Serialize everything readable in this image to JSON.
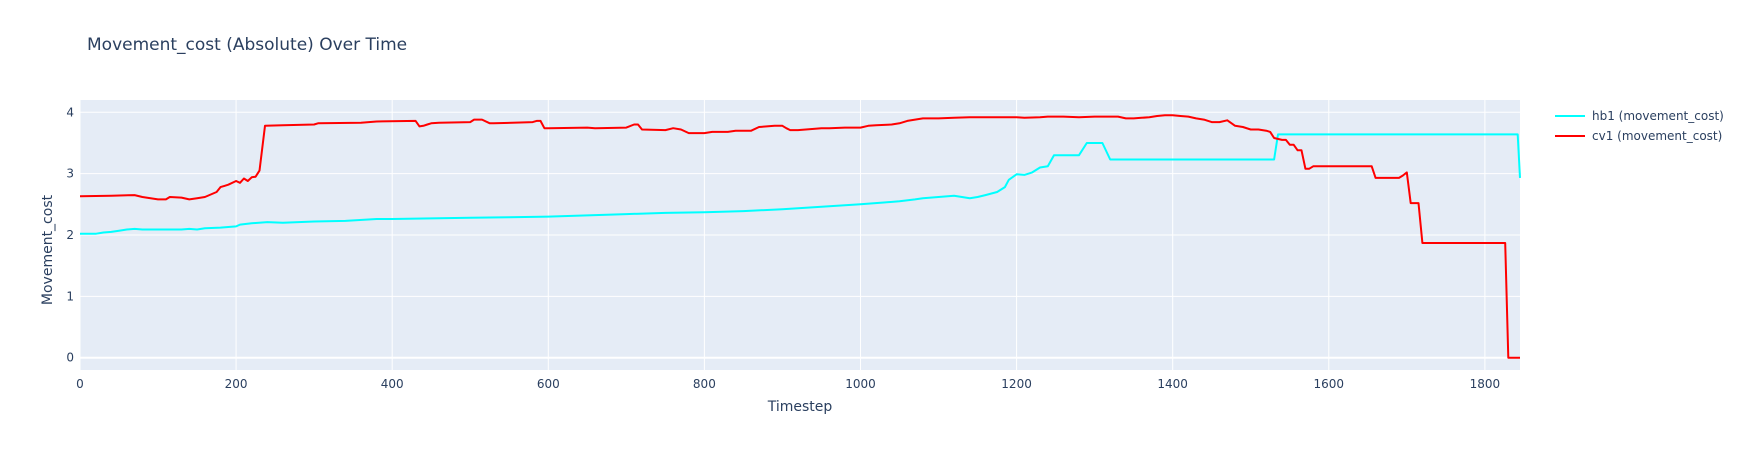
{
  "chart_data": {
    "type": "line",
    "title": "Movement_cost (Absolute) Over Time",
    "xlabel": "Timestep",
    "ylabel": "Movement_cost",
    "xlim": [
      0,
      1845
    ],
    "ylim": [
      -0.2,
      4.2
    ],
    "xticks": [
      0,
      200,
      400,
      600,
      800,
      1000,
      1200,
      1400,
      1600,
      1800
    ],
    "yticks": [
      0,
      1,
      2,
      3,
      4
    ],
    "grid": true,
    "legend_position": "top-right",
    "plot_background": "#e5ecf6",
    "series": [
      {
        "name": "hb1 (movement_cost)",
        "color": "#00ffff",
        "x": [
          0,
          20,
          30,
          40,
          50,
          60,
          70,
          80,
          100,
          120,
          130,
          140,
          150,
          160,
          180,
          200,
          205,
          220,
          240,
          260,
          300,
          340,
          380,
          400,
          450,
          500,
          550,
          600,
          650,
          700,
          750,
          800,
          850,
          900,
          950,
          1000,
          1030,
          1050,
          1070,
          1080,
          1100,
          1120,
          1140,
          1150,
          1160,
          1175,
          1185,
          1190,
          1200,
          1210,
          1220,
          1230,
          1240,
          1248,
          1250,
          1270,
          1280,
          1290,
          1310,
          1320,
          1330,
          1400,
          1500,
          1530,
          1535,
          1540,
          1842,
          1845
        ],
        "y": [
          2.02,
          2.02,
          2.04,
          2.05,
          2.07,
          2.09,
          2.1,
          2.09,
          2.09,
          2.09,
          2.09,
          2.1,
          2.09,
          2.11,
          2.12,
          2.14,
          2.17,
          2.19,
          2.21,
          2.2,
          2.22,
          2.23,
          2.26,
          2.26,
          2.27,
          2.28,
          2.29,
          2.3,
          2.32,
          2.34,
          2.36,
          2.37,
          2.39,
          2.42,
          2.46,
          2.5,
          2.53,
          2.55,
          2.58,
          2.6,
          2.62,
          2.64,
          2.6,
          2.62,
          2.65,
          2.7,
          2.78,
          2.9,
          2.99,
          2.98,
          3.02,
          3.1,
          3.12,
          3.3,
          3.3,
          3.3,
          3.3,
          3.5,
          3.5,
          3.23,
          3.23,
          3.23,
          3.23,
          3.23,
          3.64,
          3.64,
          3.64,
          2.93
        ]
      },
      {
        "name": "cv1 (movement_cost)",
        "color": "#ff0000",
        "x": [
          0,
          40,
          70,
          80,
          100,
          110,
          115,
          130,
          140,
          150,
          160,
          175,
          180,
          185,
          190,
          200,
          205,
          210,
          215,
          220,
          225,
          230,
          237,
          260,
          300,
          305,
          360,
          370,
          380,
          430,
          435,
          440,
          445,
          450,
          460,
          500,
          505,
          515,
          525,
          530,
          580,
          585,
          590,
          595,
          600,
          650,
          660,
          700,
          710,
          715,
          720,
          750,
          760,
          770,
          780,
          800,
          810,
          830,
          840,
          860,
          870,
          880,
          890,
          900,
          905,
          910,
          920,
          950,
          960,
          980,
          1000,
          1010,
          1020,
          1040,
          1050,
          1060,
          1070,
          1080,
          1100,
          1120,
          1140,
          1180,
          1200,
          1210,
          1230,
          1240,
          1260,
          1280,
          1300,
          1330,
          1340,
          1350,
          1360,
          1370,
          1380,
          1390,
          1400,
          1410,
          1420,
          1430,
          1440,
          1450,
          1460,
          1470,
          1480,
          1490,
          1500,
          1510,
          1520,
          1525,
          1530,
          1540,
          1545,
          1550,
          1555,
          1560,
          1565,
          1570,
          1575,
          1580,
          1585,
          1655,
          1660,
          1690,
          1695,
          1700,
          1705,
          1715,
          1720,
          1826,
          1830,
          1845
        ],
        "y": [
          2.63,
          2.64,
          2.65,
          2.62,
          2.58,
          2.58,
          2.62,
          2.61,
          2.58,
          2.6,
          2.62,
          2.7,
          2.78,
          2.8,
          2.82,
          2.88,
          2.85,
          2.92,
          2.88,
          2.94,
          2.95,
          3.05,
          3.78,
          3.79,
          3.8,
          3.82,
          3.83,
          3.84,
          3.85,
          3.86,
          3.77,
          3.78,
          3.8,
          3.82,
          3.83,
          3.84,
          3.88,
          3.88,
          3.82,
          3.82,
          3.84,
          3.86,
          3.86,
          3.74,
          3.74,
          3.75,
          3.74,
          3.75,
          3.8,
          3.8,
          3.72,
          3.71,
          3.74,
          3.72,
          3.66,
          3.66,
          3.68,
          3.68,
          3.7,
          3.7,
          3.76,
          3.77,
          3.78,
          3.78,
          3.74,
          3.71,
          3.71,
          3.74,
          3.74,
          3.75,
          3.75,
          3.78,
          3.79,
          3.8,
          3.82,
          3.86,
          3.88,
          3.9,
          3.9,
          3.91,
          3.92,
          3.92,
          3.92,
          3.91,
          3.92,
          3.93,
          3.93,
          3.92,
          3.93,
          3.93,
          3.9,
          3.9,
          3.91,
          3.92,
          3.94,
          3.95,
          3.95,
          3.94,
          3.93,
          3.9,
          3.88,
          3.84,
          3.84,
          3.87,
          3.78,
          3.76,
          3.72,
          3.72,
          3.7,
          3.68,
          3.58,
          3.55,
          3.55,
          3.47,
          3.47,
          3.38,
          3.38,
          3.08,
          3.08,
          3.12,
          3.12,
          3.12,
          2.93,
          2.93,
          2.97,
          3.02,
          2.52,
          2.52,
          1.87,
          1.87,
          0.0,
          0.0
        ]
      }
    ]
  }
}
